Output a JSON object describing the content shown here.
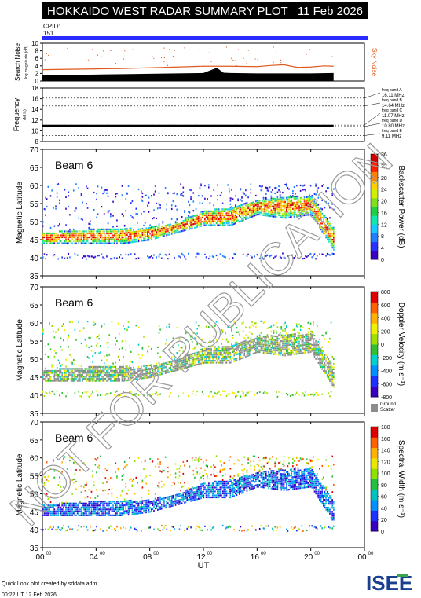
{
  "header": {
    "title": "HOKKAIDO WEST RADAR SUMMARY PLOT",
    "date": "11 Feb 2026",
    "cpid_label": "CPID:",
    "cpid_value": "151"
  },
  "colors": {
    "header_bg": "#000000",
    "cpid_bar": "#2b2bff",
    "sky_noise": "#e05a1e",
    "ground_scatter": "#8c8c8c",
    "watermark": "#9a9a9a"
  },
  "watermark": "NOT FOR PUBLICATION",
  "footer": {
    "credit": "Quick Look plot created by sddata.adm",
    "timestamp": "00:22 UT 12 Feb 2026",
    "logo_text": "ISEE"
  },
  "chart_data": [
    {
      "type": "line",
      "ylabel": "Search Noise",
      "ylabel_sub": "log magnitude (dB)",
      "ylim": [
        0,
        10
      ],
      "yticks": [
        "0",
        "2",
        "4",
        "6",
        "8",
        "10"
      ],
      "right_label": "Sky Noise",
      "series": [
        {
          "name": "Sky Noise",
          "x": [
            0,
            2,
            4,
            6,
            8,
            10,
            12,
            14,
            16,
            17,
            18,
            19,
            20,
            21,
            21.7
          ],
          "y": [
            3.0,
            3.1,
            3.2,
            3.3,
            3.5,
            3.7,
            3.9,
            3.9,
            3.8,
            4.1,
            4.3,
            3.6,
            3.7,
            4.0,
            3.9
          ]
        },
        {
          "values_kind": "search_noise",
          "x": [
            0,
            2,
            4,
            6,
            8,
            10,
            12,
            13,
            13.5,
            14,
            16,
            18,
            20,
            21.7
          ],
          "y": [
            1.5,
            1.6,
            1.7,
            1.8,
            1.9,
            2.0,
            2.1,
            3.5,
            2.2,
            2.1,
            2.0,
            2.0,
            2.0,
            2.1
          ]
        }
      ]
    },
    {
      "type": "line",
      "ylabel": "Frequency",
      "ylabel_sub": "(MHz)",
      "ylim": [
        8,
        18
      ],
      "yticks": [
        "8",
        "10",
        "12",
        "14",
        "16",
        "18"
      ],
      "bands": [
        {
          "label": "freq band A",
          "value": "16.11 MHz",
          "freq": 16.11
        },
        {
          "label": "freq band B",
          "value": "14.64 MHz",
          "freq": 14.64
        },
        {
          "label": "freq band C",
          "value": "11.07 MHz",
          "freq": 11.07
        },
        {
          "label": "freq band D",
          "value": "10.80 MHz",
          "freq": 10.8
        },
        {
          "label": "freq band E",
          "value": "9.11 MHz",
          "freq": 9.11
        }
      ]
    },
    {
      "type": "heatmap",
      "beam_label": "Beam  6",
      "ylabel": "Magnetic Latitude",
      "ylim": [
        35,
        70
      ],
      "yticks": [
        "35",
        "40",
        "45",
        "50",
        "55",
        "60",
        "65",
        "70"
      ],
      "colorbar_label": "Backscatter Power (dB)",
      "colorbar_ticks": [
        "0",
        "4",
        "8",
        "12",
        "16",
        "20",
        "24",
        "28",
        "32",
        "36"
      ],
      "colorbar_range": [
        0,
        36
      ],
      "echo_band": {
        "x": [
          0,
          2,
          4,
          6,
          8,
          10,
          12,
          14,
          16,
          18,
          20,
          21.7
        ],
        "low": [
          44,
          44,
          44,
          44,
          45,
          47,
          49,
          49,
          52,
          51,
          52,
          42
        ],
        "high": [
          47,
          47.5,
          48,
          48,
          48.5,
          50,
          53,
          54,
          56,
          57,
          57,
          48
        ]
      }
    },
    {
      "type": "heatmap",
      "beam_label": "Beam  6",
      "ylabel": "Magnetic Latitude",
      "ylim": [
        35,
        70
      ],
      "yticks": [
        "35",
        "40",
        "45",
        "50",
        "55",
        "60",
        "65",
        "70"
      ],
      "colorbar_label": "Doppler Velocity (m s⁻¹)",
      "colorbar_ticks": [
        "800",
        "600",
        "400",
        "200",
        "0",
        "-200",
        "-400",
        "-600",
        "-800"
      ],
      "colorbar_range": [
        -800,
        800
      ],
      "gs_label": "Ground Scatter",
      "echo_band": {
        "x": [
          0,
          2,
          4,
          6,
          8,
          10,
          12,
          14,
          16,
          18,
          20,
          21.7
        ],
        "low": [
          44,
          44,
          44,
          44,
          45,
          47,
          49,
          49,
          52,
          51,
          52,
          42
        ],
        "high": [
          47,
          47.5,
          48,
          48,
          48.5,
          50,
          53,
          54,
          56,
          57,
          57,
          48
        ]
      }
    },
    {
      "type": "heatmap",
      "beam_label": "Beam  6",
      "ylabel": "Magnetic Latitude",
      "ylim": [
        35,
        70
      ],
      "yticks": [
        "35",
        "40",
        "45",
        "50",
        "55",
        "60",
        "65",
        "70"
      ],
      "colorbar_label": "Spectral Width (m s⁻¹)",
      "colorbar_ticks": [
        "0",
        "20",
        "40",
        "60",
        "80",
        "100",
        "120",
        "140",
        "160",
        "180"
      ],
      "colorbar_range": [
        0,
        180
      ],
      "xlabel": "UT",
      "xticks": [
        "00",
        "04",
        "08",
        "12",
        "16",
        "20",
        "00"
      ],
      "xtick_sup": "00",
      "echo_band": {
        "x": [
          0,
          2,
          4,
          6,
          8,
          10,
          12,
          14,
          16,
          18,
          20,
          21.7
        ],
        "low": [
          44,
          44,
          44,
          44,
          45,
          47,
          49,
          49,
          52,
          51,
          52,
          42
        ],
        "high": [
          47,
          47.5,
          48,
          48,
          48.5,
          50,
          53,
          54,
          56,
          57,
          57,
          48
        ]
      }
    }
  ]
}
